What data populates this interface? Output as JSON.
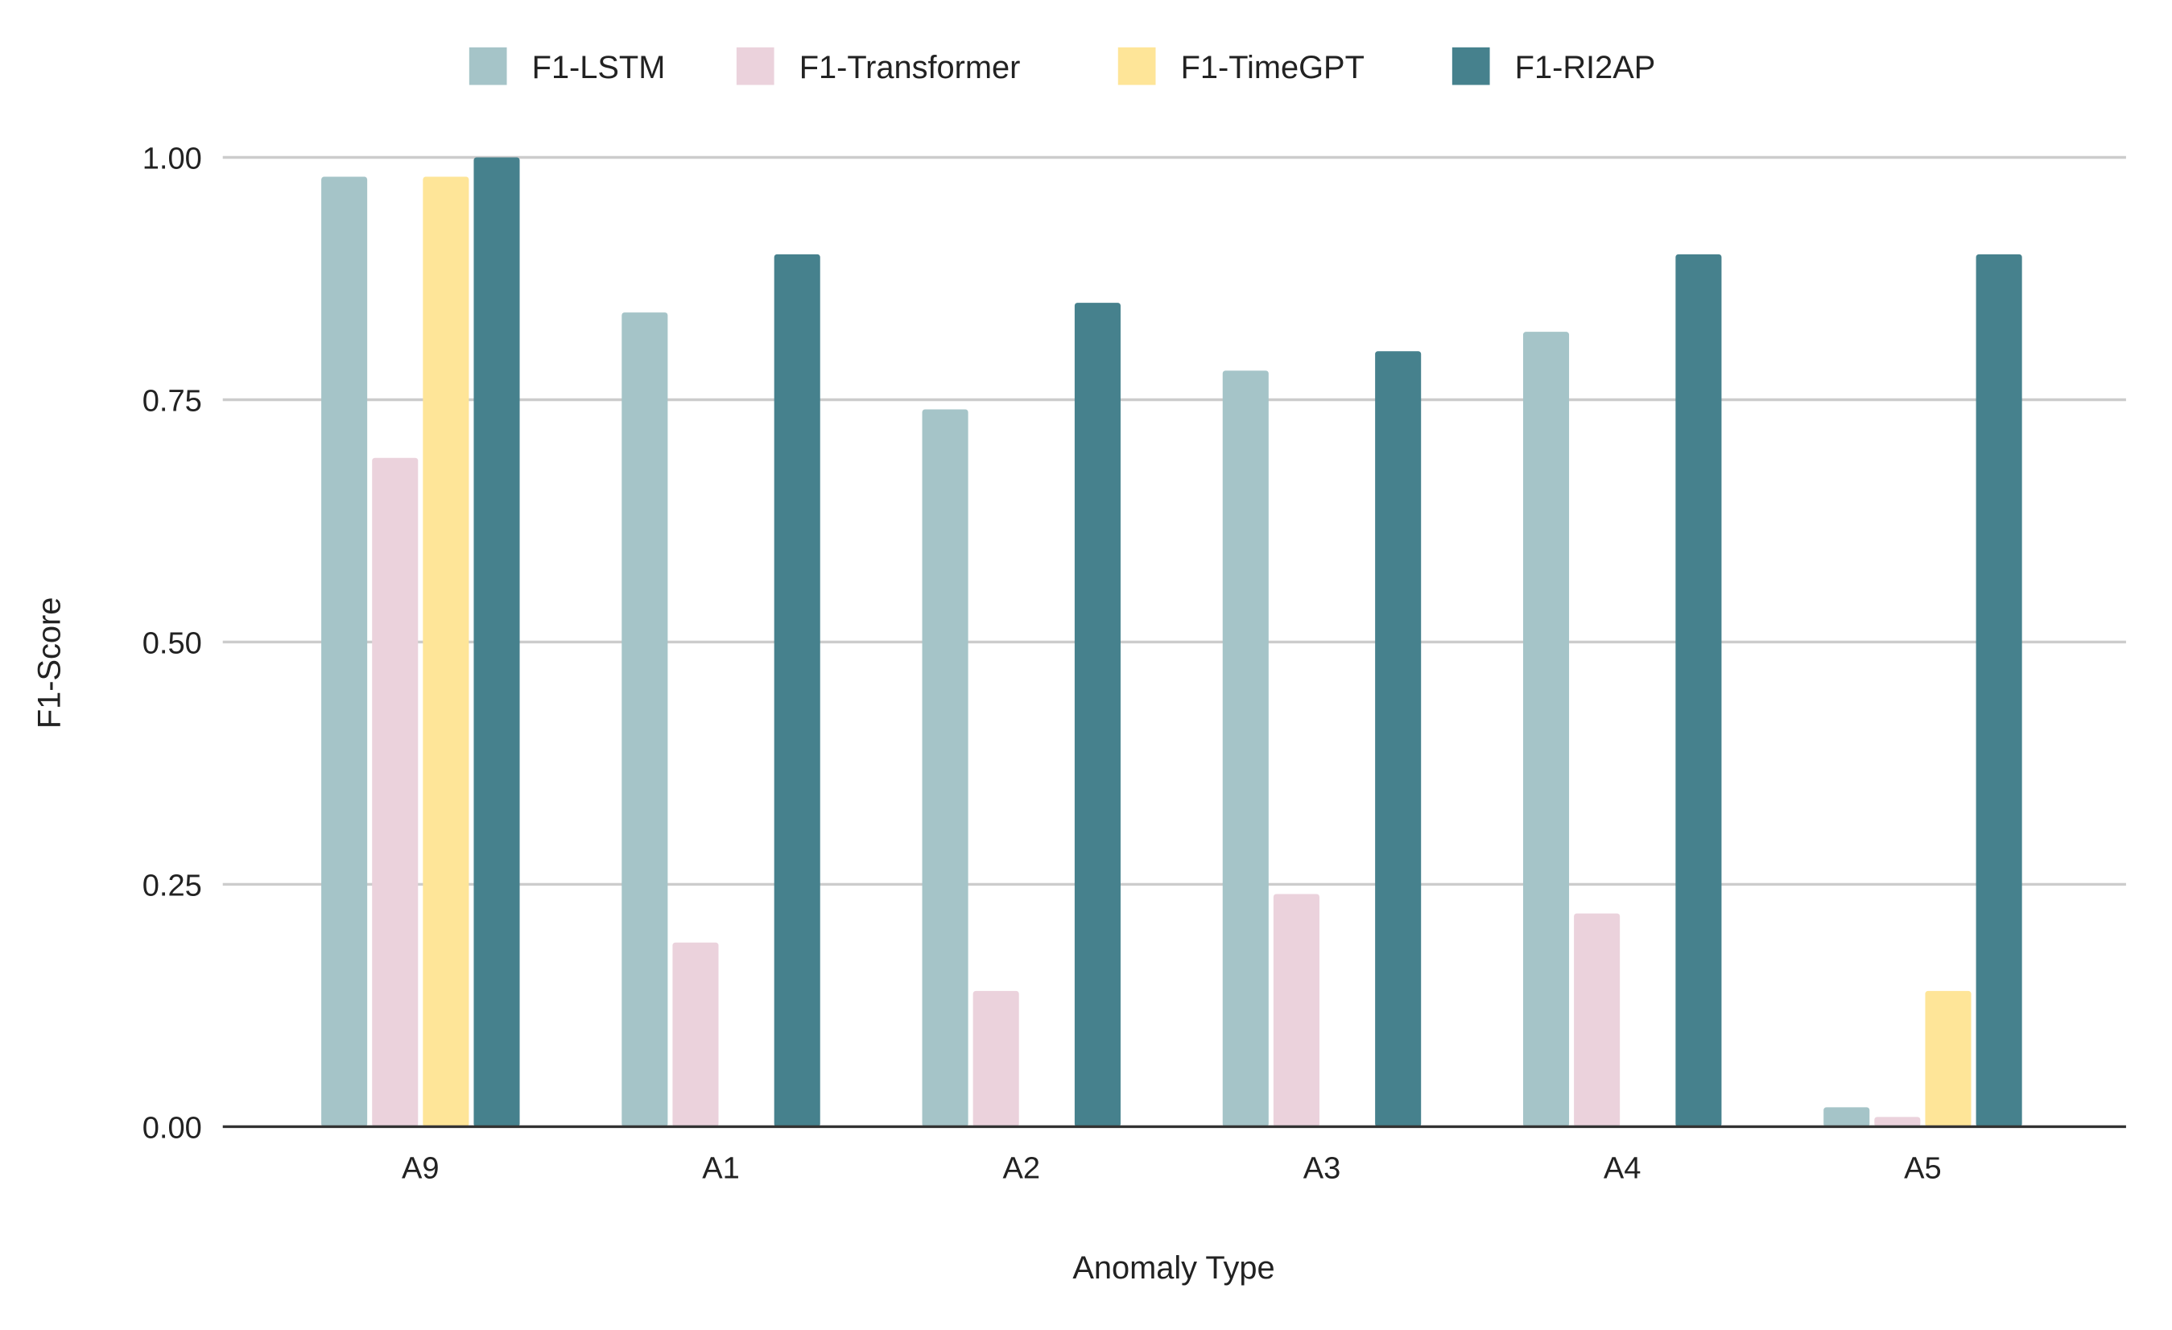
{
  "chart_data": {
    "type": "bar",
    "title": "",
    "xlabel": "Anomaly Type",
    "ylabel": "F1-Score",
    "ylim": [
      0,
      1
    ],
    "yticks": [
      "0.00",
      "0.25",
      "0.50",
      "0.75",
      "1.00"
    ],
    "grid": true,
    "legend_position": "top",
    "categories": [
      "A9",
      "A1",
      "A2",
      "A3",
      "A4",
      "A5"
    ],
    "series": [
      {
        "name": "F1-LSTM",
        "color": "#a5c4c8",
        "values": [
          0.98,
          0.84,
          0.74,
          0.78,
          0.82,
          0.02
        ]
      },
      {
        "name": "F1-Transformer",
        "color": "#ebd2dc",
        "values": [
          0.69,
          0.19,
          0.14,
          0.24,
          0.22,
          0.01
        ]
      },
      {
        "name": "F1-TimeGPT",
        "color": "#fee598",
        "values": [
          0.98,
          0.0,
          0.0,
          0.0,
          0.0,
          0.14
        ]
      },
      {
        "name": "F1-RI2AP",
        "color": "#46818d",
        "values": [
          1.0,
          0.9,
          0.85,
          0.8,
          0.9,
          0.9
        ]
      }
    ]
  }
}
